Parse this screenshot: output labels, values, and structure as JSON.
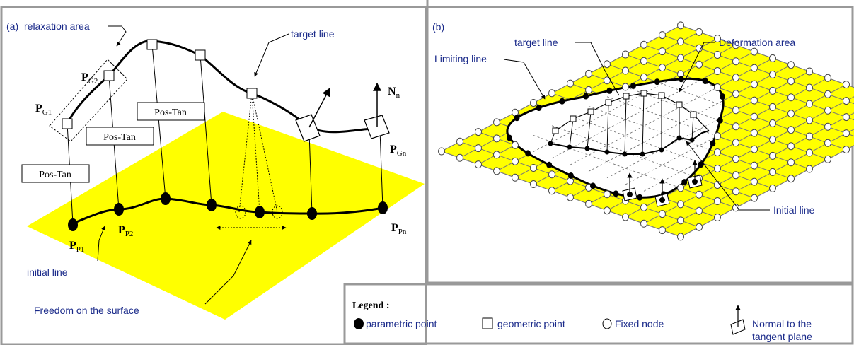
{
  "panel_a": {
    "tag": "(a)",
    "relaxation_area": "relaxation area",
    "target_line": "target line",
    "initial_line": "initial line",
    "freedom": "Freedom on the surface",
    "pos_tan": "Pos-Tan",
    "N_main": "N",
    "N_sub": "n",
    "P_main": "P",
    "subs": {
      "G1": "G1",
      "G2": "G2",
      "Gn": "Gn",
      "P1": "P1",
      "P2": "P2",
      "Pn": "Pn"
    }
  },
  "panel_b": {
    "tag": "(b)",
    "target_line": "target line",
    "limiting_line": "Limiting line",
    "deformation_area": "Deformation area",
    "initial_line": "Initial line"
  },
  "legend": {
    "title": "Legend :",
    "parametric": "parametric point",
    "geometric": "geometric point",
    "fixed": "Fixed node",
    "normal_1": "Normal to the",
    "normal_2": "tangent plane"
  },
  "colors": {
    "surface": "#ffff00",
    "label_blue": "#1a2a8a",
    "frame": "#999999"
  }
}
